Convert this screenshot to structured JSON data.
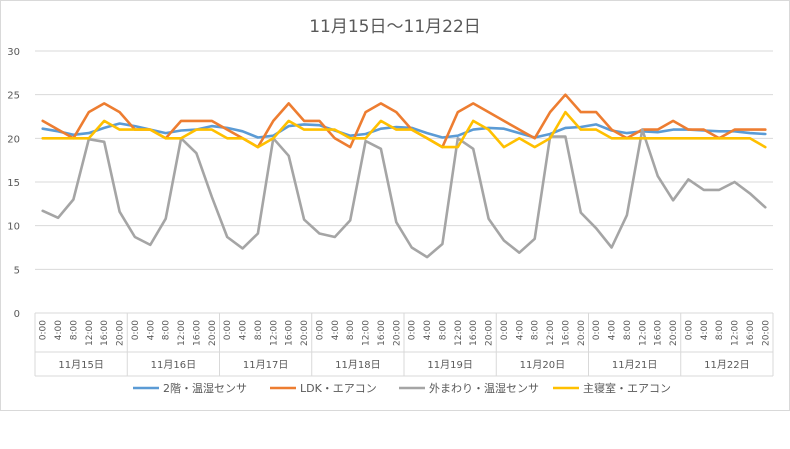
{
  "chart_data": {
    "type": "line",
    "title": "11月15日～11月22日",
    "ylim": [
      0,
      30
    ],
    "yticks": [
      "0",
      "5",
      "10",
      "15",
      "20",
      "25",
      "30"
    ],
    "x_time_labels": [
      "0:00",
      "4:00",
      "8:00",
      "12:00",
      "16:00",
      "20:00"
    ],
    "day_labels": [
      "11月15日",
      "11月16日",
      "11月17日",
      "11月18日",
      "11月19日",
      "11月20日",
      "11月21日",
      "11月22日"
    ],
    "grid": true,
    "legend_position": "bottom",
    "series": [
      {
        "name": "2階・温湿センサ",
        "color": "#5b9bd5",
        "values": [
          21.1,
          20.8,
          20.4,
          20.6,
          21.2,
          21.7,
          21.4,
          21.0,
          20.6,
          20.9,
          21.0,
          21.4,
          21.2,
          20.8,
          20.1,
          20.3,
          21.4,
          21.6,
          21.5,
          20.9,
          20.3,
          20.5,
          21.1,
          21.3,
          21.2,
          20.6,
          20.1,
          20.3,
          21.0,
          21.2,
          21.1,
          20.6,
          20.1,
          20.5,
          21.2,
          21.3,
          21.6,
          20.9,
          20.6,
          20.8,
          20.7,
          21.0,
          21.0,
          20.9,
          20.8,
          20.8,
          20.6,
          20.5
        ]
      },
      {
        "name": "LDK・エアコン",
        "color": "#ed7d31",
        "values": [
          22,
          21,
          20,
          23,
          24,
          23,
          21,
          21,
          20,
          22,
          22,
          22,
          21,
          20,
          19,
          22,
          24,
          22,
          22,
          20,
          19,
          23,
          24,
          23,
          21,
          20,
          19,
          23,
          24,
          23,
          22,
          21,
          20,
          23,
          25,
          23,
          23,
          21,
          20,
          21,
          21,
          22,
          21,
          21,
          20,
          21,
          21,
          21
        ]
      },
      {
        "name": "外まわり・温湿センサ",
        "color": "#a5a5a5",
        "values": [
          11.7,
          10.9,
          13.0,
          19.9,
          19.6,
          11.6,
          8.7,
          7.8,
          10.8,
          20.0,
          18.3,
          13.3,
          8.7,
          7.4,
          9.1,
          20.0,
          18.0,
          10.7,
          9.1,
          8.7,
          10.6,
          19.7,
          18.8,
          10.4,
          7.5,
          6.4,
          7.9,
          20.0,
          18.8,
          10.8,
          8.3,
          6.9,
          8.5,
          20.2,
          20.2,
          11.5,
          9.7,
          7.5,
          11.2,
          21.0,
          15.7,
          12.9,
          15.3,
          14.1,
          14.1,
          15.0,
          13.7,
          12.1
        ]
      },
      {
        "name": "主寝室・エアコン",
        "color": "#ffc000",
        "values": [
          20,
          20,
          20,
          20,
          22,
          21,
          21,
          21,
          20,
          20,
          21,
          21,
          20,
          20,
          19,
          20,
          22,
          21,
          21,
          21,
          20,
          20,
          22,
          21,
          21,
          20,
          19,
          19,
          22,
          21,
          19,
          20,
          19,
          20,
          23,
          21,
          21,
          20,
          20,
          20,
          20,
          20,
          20,
          20,
          20,
          20,
          20,
          19
        ]
      }
    ]
  }
}
